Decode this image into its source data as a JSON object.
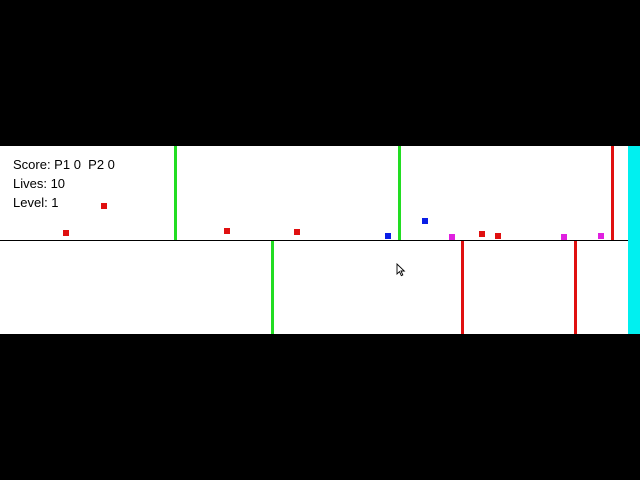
{
  "hud": {
    "score": "Score: P1 0  P2 0",
    "lives": "Lives: 10",
    "level": "Level: 1"
  },
  "colors": {
    "background": "#000000",
    "playfield": "#ffffff",
    "green": "#22dd22",
    "red": "#e01010",
    "blue": "#0a1ee6",
    "magenta": "#e020e0",
    "cyan": "#00f0f0"
  },
  "lanes": [
    {
      "name": "upper-lane",
      "barriers": [
        {
          "color": "green"
        },
        {
          "color": "green"
        },
        {
          "color": "red"
        }
      ],
      "pellets": [
        {
          "color": "red"
        },
        {
          "color": "red"
        },
        {
          "color": "blue"
        },
        {
          "color": "magenta"
        },
        {
          "color": "red"
        },
        {
          "color": "magenta"
        }
      ]
    },
    {
      "name": "lower-lane",
      "barriers": [
        {
          "color": "green"
        },
        {
          "color": "red"
        },
        {
          "color": "red"
        }
      ],
      "pellets": [
        {
          "color": "red"
        },
        {
          "color": "red"
        },
        {
          "color": "blue"
        },
        {
          "color": "red"
        },
        {
          "color": "magenta"
        }
      ]
    }
  ]
}
